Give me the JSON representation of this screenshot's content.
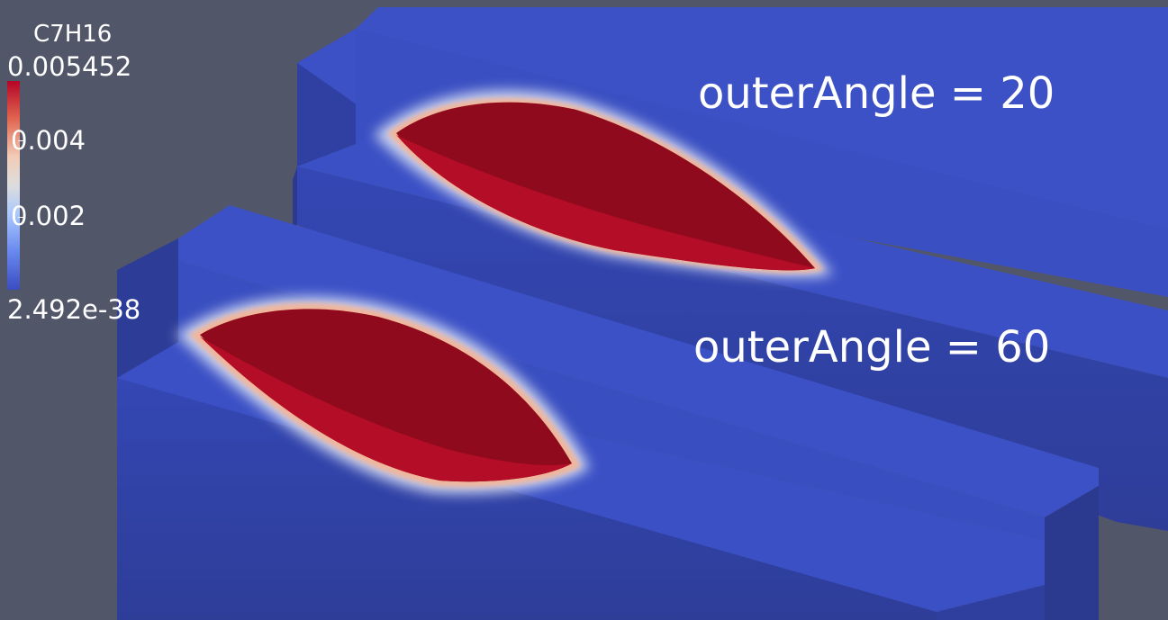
{
  "legend": {
    "title": "C7H16",
    "ticks": [
      "0.005452",
      "0.004",
      "0.002",
      "2.492e-38"
    ],
    "colormap": {
      "low": "#3b4cc0",
      "mid": "#dddddd",
      "high": "#b40426"
    }
  },
  "annotations": [
    {
      "label": "outerAngle = 20"
    },
    {
      "label": "outerAngle = 60"
    }
  ],
  "colors": {
    "background": "#525669",
    "solid_top": "#3c52c8",
    "solid_front": "#31409e",
    "solid_side": "#2b3a8f",
    "hot_core": "#8e0a1c",
    "hot_face": "#b00d28"
  }
}
